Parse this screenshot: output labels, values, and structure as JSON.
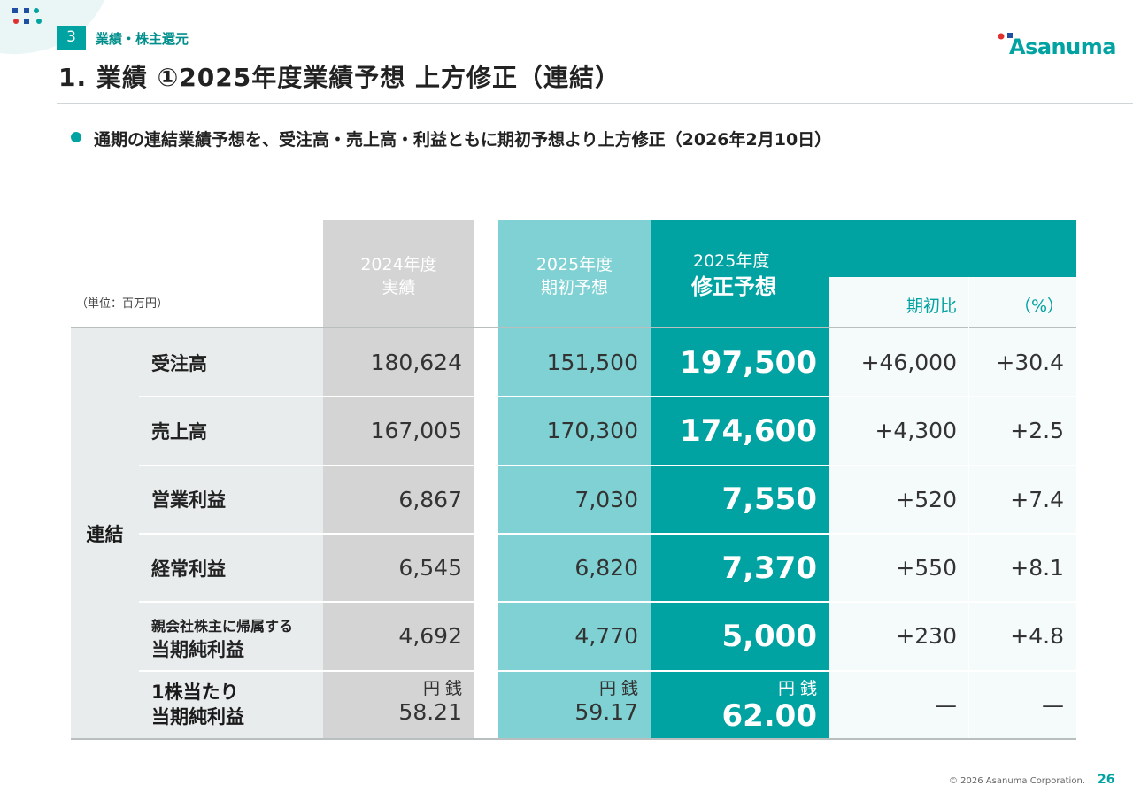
{
  "header": {
    "section_number": "3",
    "section_label": "業績・株主還元",
    "title": "1. 業績 ①2025年度業績予想 上方修正（連結）",
    "logo": "Asanuma"
  },
  "bullet": "通期の連結業績予想を、受注高・売上高・利益ともに期初予想より上方修正（2026年2月10日）",
  "table": {
    "unit": "（単位：百万円）",
    "group_label": "連結",
    "col_actual_line1": "2024年度",
    "col_actual_line2": "実績",
    "col_initial_line1": "2025年度",
    "col_initial_line2": "期初予想",
    "col_revised_line1": "2025年度",
    "col_revised_line2": "修正予想",
    "col_diff": "期初比",
    "col_pct": "（%）",
    "rows": [
      {
        "label": "受注高",
        "actual": "180,624",
        "initial": "151,500",
        "revised": "197,500",
        "diff": "+46,000",
        "pct": "+30.4"
      },
      {
        "label": "売上高",
        "actual": "167,005",
        "initial": "170,300",
        "revised": "174,600",
        "diff": "+4,300",
        "pct": "+2.5"
      },
      {
        "label": "営業利益",
        "actual": "6,867",
        "initial": "7,030",
        "revised": "7,550",
        "diff": "+520",
        "pct": "+7.4"
      },
      {
        "label": "経常利益",
        "actual": "6,545",
        "initial": "6,820",
        "revised": "7,370",
        "diff": "+550",
        "pct": "+8.1"
      },
      {
        "label_small": "親会社株主に帰属する",
        "label": "当期純利益",
        "actual": "4,692",
        "initial": "4,770",
        "revised": "5,000",
        "diff": "+230",
        "pct": "+4.8"
      }
    ],
    "eps": {
      "label_line1": "1株当たり",
      "label_line2": "当期純利益",
      "unit": "円 銭",
      "actual": "58.21",
      "initial": "59.17",
      "revised": "62.00",
      "diff": "—",
      "pct": "—"
    }
  },
  "footer": {
    "copyright": "© 2026 Asanuma Corporation.",
    "page": "26"
  },
  "colors": {
    "teal": "#00a3a1",
    "mint": "#7fd1d3",
    "gray": "#d4d4d4"
  }
}
